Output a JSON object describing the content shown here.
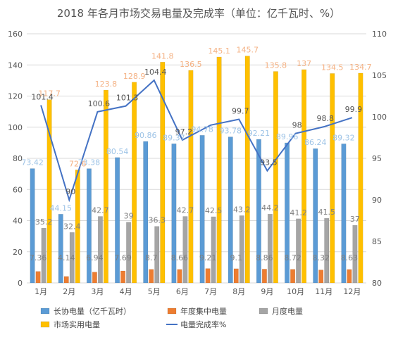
{
  "chart_data": {
    "type": "bar",
    "title": "2018 年各月市场交易电量及完成率（单位：亿千瓦时、%）",
    "categories": [
      "1月",
      "2月",
      "3月",
      "4月",
      "5月",
      "6月",
      "7月",
      "8月",
      "9月",
      "10月",
      "11月",
      "12月"
    ],
    "series": [
      {
        "name": "长协电量（亿千瓦时）",
        "type": "bar",
        "axis": "left",
        "color": "#5b9bd5",
        "values": [
          73.42,
          44.15,
          73.38,
          80.54,
          90.86,
          89.37,
          94.78,
          93.78,
          92.21,
          89.96,
          86.24,
          89.32
        ],
        "labels": [
          "73.42",
          "44.15",
          "73.38",
          "80.54",
          "90.86",
          "89.37",
          "94.78",
          "93.78",
          "92.21",
          "89.96",
          "86.24",
          "89.32"
        ]
      },
      {
        "name": "年度集中电量",
        "type": "bar",
        "axis": "left",
        "color": "#ed7d31",
        "values": [
          7.36,
          4.14,
          6.94,
          7.69,
          8.7,
          8.66,
          9.21,
          9.1,
          8.86,
          8.72,
          8.32,
          8.63
        ],
        "labels": [
          "7.36",
          "4.14",
          "6.94",
          "7.69",
          "8.7",
          "8.66",
          "9.21",
          "9.1",
          "8.86",
          "8.72",
          "8.32",
          "8.63"
        ]
      },
      {
        "name": "月度电量",
        "type": "bar",
        "axis": "left",
        "color": "#a5a5a5",
        "values": [
          35.2,
          32.4,
          42.7,
          39,
          36.3,
          42.7,
          42.5,
          43.2,
          44.2,
          41.2,
          41.5,
          37
        ],
        "labels": [
          "35.2",
          "32.4",
          "42.7",
          "39",
          "36.3",
          "42.7",
          "42.5",
          "43.2",
          "44.2",
          "41.2",
          "41.5",
          "37"
        ]
      },
      {
        "name": "市场实用电量",
        "type": "bar",
        "axis": "left",
        "color": "#ffc000",
        "values": [
          117.7,
          72.6,
          123.8,
          128.9,
          141.8,
          136.5,
          145.1,
          145.7,
          135.8,
          137,
          134.5,
          134.7
        ],
        "labels": [
          "117.7",
          "72.6",
          "123.8",
          "128.9",
          "141.8",
          "136.5",
          "145.1",
          "145.7",
          "135.8",
          "137",
          "134.5",
          "134.7"
        ]
      },
      {
        "name": "电量完成率%",
        "type": "line",
        "axis": "right",
        "color": "#4472c4",
        "values": [
          101.4,
          90,
          100.6,
          101.3,
          104.4,
          97.2,
          99.0,
          99.7,
          93.5,
          98.0,
          98.8,
          99.9
        ],
        "labels": [
          "101.4",
          "90",
          "100.6",
          "101.3",
          "104.4",
          "97.2",
          "",
          "99.7",
          "93.5",
          "98",
          "98.8",
          "99.9"
        ]
      }
    ],
    "ylim": [
      0,
      160
    ],
    "yticks": [
      0,
      20,
      40,
      60,
      80,
      100,
      120,
      140,
      160
    ],
    "y2lim": [
      80,
      110
    ],
    "y2ticks": [
      80,
      85,
      90,
      95,
      100,
      105,
      110
    ],
    "grid": true,
    "legend_position": "bottom"
  }
}
